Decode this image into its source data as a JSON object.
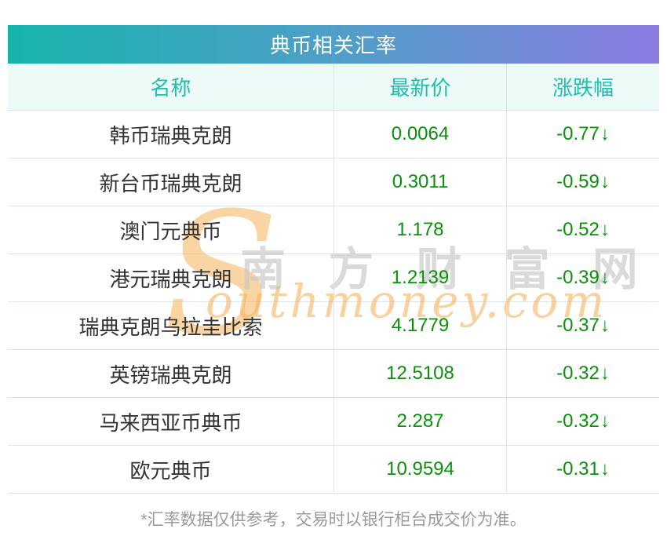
{
  "title": "典币相关汇率",
  "table": {
    "columns": [
      "名称",
      "最新价",
      "涨跌幅"
    ],
    "rows": [
      {
        "name": "韩币瑞典克朗",
        "price": "0.0064",
        "change": "-0.77",
        "arrow": "↓"
      },
      {
        "name": "新台币瑞典克朗",
        "price": "0.3011",
        "change": "-0.59",
        "arrow": "↓"
      },
      {
        "name": "澳门元典币",
        "price": "1.178",
        "change": "-0.52",
        "arrow": "↓"
      },
      {
        "name": "港元瑞典克朗",
        "price": "1.2139",
        "change": "-0.39",
        "arrow": "↓"
      },
      {
        "name": "瑞典克朗乌拉圭比索",
        "price": "4.1779",
        "change": "-0.37",
        "arrow": "↓"
      },
      {
        "name": "英镑瑞典克朗",
        "price": "12.5108",
        "change": "-0.32",
        "arrow": "↓"
      },
      {
        "name": "马来西亚币典币",
        "price": "2.287",
        "change": "-0.32",
        "arrow": "↓"
      },
      {
        "name": "欧元典币",
        "price": "10.9594",
        "change": "-0.31",
        "arrow": "↓"
      }
    ]
  },
  "watermark": {
    "s": "S",
    "cn": "南 方 财 富 网",
    "en": "outhmoney.com"
  },
  "footer": "*汇率数据仅供参考，交易时以银行柜台成交价为准。",
  "colors": {
    "gradient_start": "#16b3ab",
    "gradient_end": "#8b7ce1",
    "header_bg": "#edfbf8",
    "header_text": "#1ebdad",
    "value_green": "#0a910a",
    "row_border": "#dde6ef",
    "footer_gray": "#9a9a9a"
  },
  "chart_data": {
    "type": "table",
    "title": "典币相关汇率",
    "columns": [
      "名称",
      "最新价",
      "涨跌幅"
    ],
    "rows": [
      [
        "韩币瑞典克朗",
        "0.0064",
        "-0.77↓"
      ],
      [
        "新台币瑞典克朗",
        "0.3011",
        "-0.59↓"
      ],
      [
        "澳门元典币",
        "1.178",
        "-0.52↓"
      ],
      [
        "港元瑞典克朗",
        "1.2139",
        "-0.39↓"
      ],
      [
        "瑞典克朗乌拉圭比索",
        "4.1779",
        "-0.37↓"
      ],
      [
        "英镑瑞典克朗",
        "12.5108",
        "-0.32↓"
      ],
      [
        "马来西亚币典币",
        "2.287",
        "-0.32↓"
      ],
      [
        "欧元典币",
        "10.9594",
        "-0.31↓"
      ]
    ],
    "note": "*汇率数据仅供参考，交易时以银行柜台成交价为准。"
  }
}
